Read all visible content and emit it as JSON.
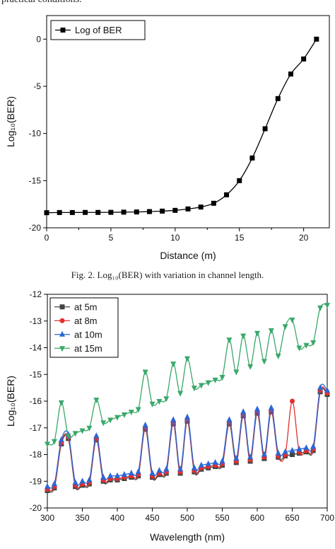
{
  "page": {
    "top_text": "practical conditions.",
    "caption": "Fig. 2. Log₁₀(BER) with variation in channel length."
  },
  "chart_data": [
    {
      "type": "line",
      "title": "",
      "xlabel": "Distance (m)",
      "ylabel": "Log₁₀(BER)",
      "xlim": [
        0,
        22
      ],
      "ylim": [
        -20,
        2.5
      ],
      "xticks": [
        0,
        5,
        10,
        15,
        20
      ],
      "yticks": [
        0,
        -5,
        -10,
        -15,
        -20
      ],
      "grid": false,
      "legend": "top-left",
      "series": [
        {
          "name": "Log of BER",
          "color": "#000000",
          "marker": "square",
          "x": [
            0,
            1,
            2,
            3,
            4,
            5,
            6,
            7,
            8,
            9,
            10,
            11,
            12,
            13,
            14,
            15,
            16,
            17,
            18,
            19,
            20,
            21
          ],
          "y": [
            -18.4,
            -18.38,
            -18.38,
            -18.37,
            -18.37,
            -18.36,
            -18.34,
            -18.32,
            -18.28,
            -18.23,
            -18.15,
            -18.0,
            -17.8,
            -17.4,
            -16.5,
            -15.0,
            -12.6,
            -9.5,
            -6.3,
            -3.7,
            -2.1,
            0.0
          ]
        }
      ]
    },
    {
      "type": "line",
      "title": "",
      "xlabel": "Wavelength (nm)",
      "ylabel": "Log₁₀(BER)",
      "xlim": [
        300,
        700
      ],
      "ylim": [
        -20,
        -12
      ],
      "xticks": [
        300,
        350,
        400,
        450,
        500,
        550,
        600,
        650,
        700
      ],
      "yticks": [
        -12,
        -13,
        -14,
        -15,
        -16,
        -17,
        -18,
        -19,
        -20
      ],
      "grid": false,
      "legend": "top-left",
      "series": [
        {
          "name": "at 5m",
          "color": "#444444",
          "marker": "square",
          "x": [
            300,
            310,
            320,
            330,
            340,
            350,
            360,
            370,
            380,
            390,
            400,
            410,
            420,
            430,
            440,
            450,
            460,
            470,
            480,
            490,
            500,
            510,
            520,
            530,
            540,
            550,
            560,
            570,
            580,
            590,
            600,
            610,
            620,
            630,
            640,
            650,
            660,
            670,
            680,
            690,
            700
          ],
          "y": [
            -19.35,
            -19.25,
            -17.6,
            -17.4,
            -19.2,
            -19.15,
            -19.1,
            -17.45,
            -19.0,
            -18.95,
            -18.95,
            -18.9,
            -18.85,
            -18.8,
            -17.05,
            -18.85,
            -18.75,
            -18.7,
            -16.85,
            -18.7,
            -16.75,
            -18.65,
            -18.55,
            -18.5,
            -18.45,
            -18.4,
            -16.85,
            -18.3,
            -16.55,
            -18.25,
            -16.45,
            -18.15,
            -16.4,
            -18.1,
            -18.05,
            -18.0,
            -17.95,
            -17.9,
            -17.85,
            -15.65,
            -15.75
          ]
        },
        {
          "name": "at 8m",
          "color": "#e03030",
          "marker": "circle",
          "x": [
            300,
            310,
            320,
            330,
            340,
            350,
            360,
            370,
            380,
            390,
            400,
            410,
            420,
            430,
            440,
            450,
            460,
            470,
            480,
            490,
            500,
            510,
            520,
            530,
            540,
            550,
            560,
            570,
            580,
            590,
            600,
            610,
            620,
            630,
            640,
            650,
            660,
            670,
            680,
            690,
            700
          ],
          "y": [
            -19.3,
            -19.2,
            -17.55,
            -17.35,
            -19.15,
            -19.1,
            -19.05,
            -17.4,
            -18.95,
            -18.9,
            -18.9,
            -18.85,
            -18.8,
            -18.75,
            -17.0,
            -18.8,
            -18.7,
            -18.65,
            -16.8,
            -18.65,
            -16.7,
            -18.6,
            -18.5,
            -18.45,
            -18.4,
            -18.35,
            -16.8,
            -18.25,
            -16.5,
            -18.2,
            -16.4,
            -18.1,
            -16.35,
            -18.05,
            -18.0,
            -16.0,
            -17.9,
            -17.85,
            -17.8,
            -15.6,
            -15.7
          ]
        },
        {
          "name": "at 10m",
          "color": "#2a66d6",
          "marker": "triangle-up",
          "x": [
            300,
            310,
            320,
            330,
            340,
            350,
            360,
            370,
            380,
            390,
            400,
            410,
            420,
            430,
            440,
            450,
            460,
            470,
            480,
            490,
            500,
            510,
            520,
            530,
            540,
            550,
            560,
            570,
            580,
            590,
            600,
            610,
            620,
            630,
            640,
            650,
            660,
            670,
            680,
            690,
            700
          ],
          "y": [
            -19.2,
            -19.1,
            -17.45,
            -17.25,
            -19.05,
            -19.0,
            -18.95,
            -17.3,
            -18.85,
            -18.8,
            -18.8,
            -18.75,
            -18.7,
            -18.65,
            -16.9,
            -18.7,
            -18.6,
            -18.55,
            -16.7,
            -18.55,
            -16.6,
            -18.5,
            -18.4,
            -18.35,
            -18.3,
            -18.25,
            -16.7,
            -18.15,
            -16.4,
            -18.1,
            -16.3,
            -18.0,
            -16.25,
            -17.95,
            -17.9,
            -17.85,
            -17.8,
            -17.75,
            -17.7,
            -15.5,
            -15.6
          ]
        },
        {
          "name": "at 15m",
          "color": "#3aa86a",
          "marker": "triangle-down",
          "x": [
            300,
            310,
            320,
            330,
            340,
            350,
            360,
            370,
            380,
            390,
            400,
            410,
            420,
            430,
            440,
            450,
            460,
            470,
            480,
            490,
            500,
            510,
            520,
            530,
            540,
            550,
            560,
            570,
            580,
            590,
            600,
            610,
            620,
            630,
            640,
            650,
            660,
            670,
            680,
            690,
            700
          ],
          "y": [
            -17.6,
            -17.5,
            -16.05,
            -17.3,
            -17.2,
            -17.1,
            -17.0,
            -15.95,
            -16.8,
            -16.7,
            -16.6,
            -16.5,
            -16.4,
            -16.3,
            -14.9,
            -16.1,
            -16.0,
            -15.9,
            -14.6,
            -15.7,
            -14.4,
            -15.5,
            -15.4,
            -15.3,
            -15.2,
            -15.1,
            -13.7,
            -14.9,
            -13.55,
            -14.7,
            -13.45,
            -14.5,
            -13.35,
            -14.3,
            -13.2,
            -12.95,
            -14.0,
            -13.9,
            -13.8,
            -12.5,
            -12.4
          ]
        }
      ]
    }
  ]
}
